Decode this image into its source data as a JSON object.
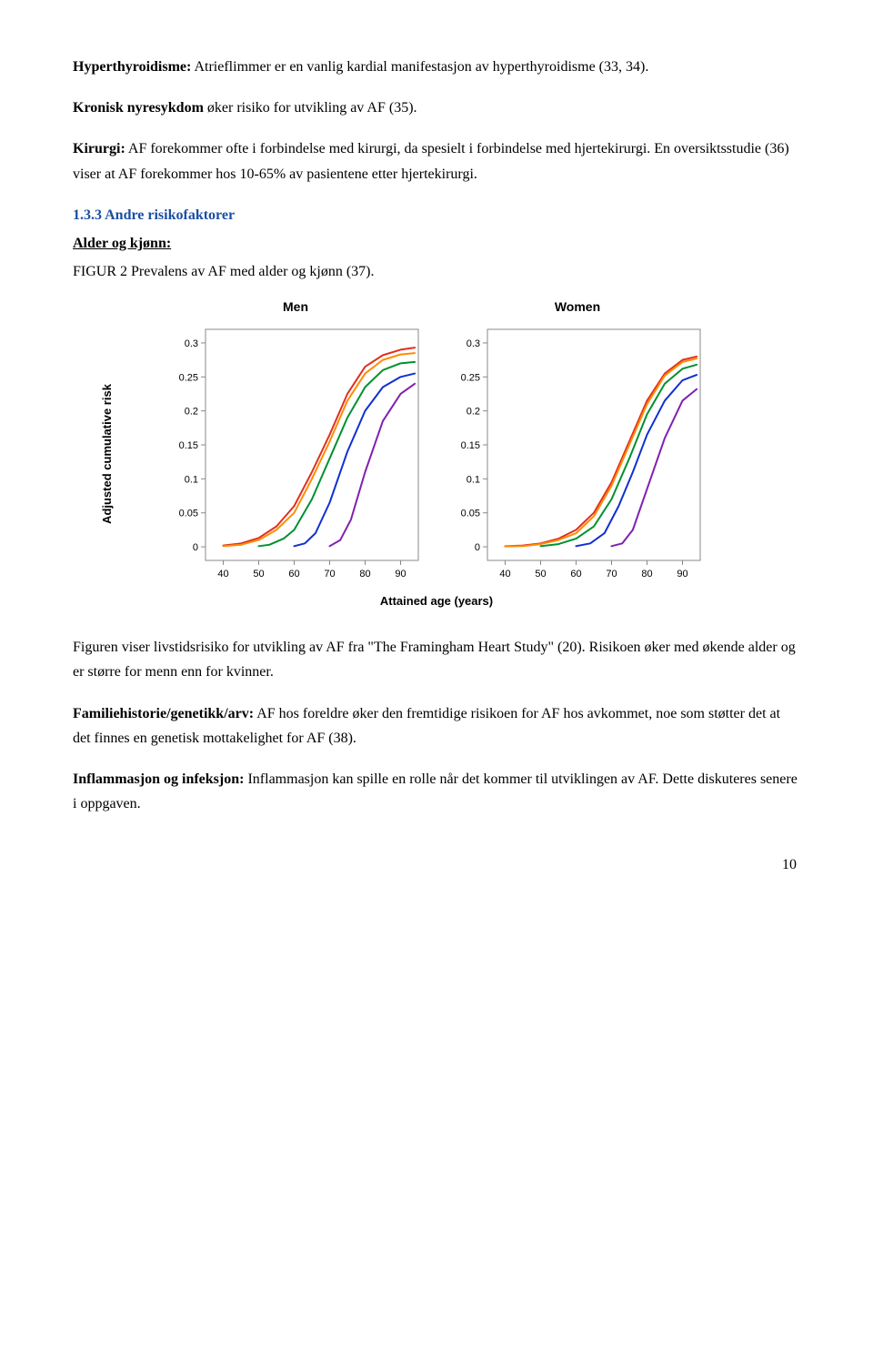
{
  "para1": {
    "label": "Hyperthyroidisme:",
    "text": " Atrieflimmer er en vanlig kardial manifestasjon av hyperthyroidisme (33, 34)."
  },
  "para2": {
    "label": "Kronisk nyresykdom",
    "text": " øker risiko for utvikling av AF (35)."
  },
  "para3": {
    "label": "Kirurgi:",
    "text": " AF forekommer ofte i forbindelse med kirurgi, da spesielt i forbindelse med hjertekirurgi. En oversiktsstudie (36) viser at AF forekommer hos 10-65% av pasientene etter hjertekirurgi."
  },
  "section_heading": "1.3.3 Andre risikofaktorer",
  "subheading": "Alder og kjønn:",
  "figure_caption": "FIGUR 2 Prevalens av AF med alder og kjønn (37).",
  "chart": {
    "y_axis_label": "Adjusted cumulative risk",
    "x_axis_label": "Attained age (years)",
    "panels": [
      {
        "title": "Men"
      },
      {
        "title": "Women"
      }
    ],
    "x_ticks": [
      "40",
      "50",
      "60",
      "70",
      "80",
      "90"
    ],
    "y_ticks": [
      "0",
      "0.05",
      "0.1",
      "0.15",
      "0.2",
      "0.25",
      "0.3"
    ],
    "xlim": [
      35,
      95
    ],
    "ylim": [
      -0.02,
      0.32
    ],
    "line_width": 2,
    "tick_fontsize": 11,
    "axis_color": "#888888",
    "background": "#ffffff",
    "series": {
      "men": [
        {
          "color": "#e03020",
          "points": [
            [
              40,
              0.002
            ],
            [
              45,
              0.005
            ],
            [
              50,
              0.013
            ],
            [
              55,
              0.03
            ],
            [
              60,
              0.06
            ],
            [
              65,
              0.11
            ],
            [
              70,
              0.165
            ],
            [
              75,
              0.225
            ],
            [
              80,
              0.265
            ],
            [
              85,
              0.282
            ],
            [
              90,
              0.29
            ],
            [
              94,
              0.293
            ]
          ]
        },
        {
          "color": "#ff8c00",
          "points": [
            [
              40,
              0.001
            ],
            [
              45,
              0.003
            ],
            [
              50,
              0.01
            ],
            [
              55,
              0.025
            ],
            [
              60,
              0.05
            ],
            [
              65,
              0.1
            ],
            [
              70,
              0.155
            ],
            [
              75,
              0.215
            ],
            [
              80,
              0.255
            ],
            [
              85,
              0.275
            ],
            [
              90,
              0.283
            ],
            [
              94,
              0.285
            ]
          ]
        },
        {
          "color": "#009030",
          "points": [
            [
              50,
              0.001
            ],
            [
              53,
              0.003
            ],
            [
              57,
              0.012
            ],
            [
              60,
              0.025
            ],
            [
              65,
              0.07
            ],
            [
              70,
              0.13
            ],
            [
              75,
              0.19
            ],
            [
              80,
              0.235
            ],
            [
              85,
              0.26
            ],
            [
              90,
              0.27
            ],
            [
              94,
              0.272
            ]
          ]
        },
        {
          "color": "#1030d0",
          "points": [
            [
              60,
              0.001
            ],
            [
              63,
              0.005
            ],
            [
              66,
              0.02
            ],
            [
              70,
              0.065
            ],
            [
              75,
              0.14
            ],
            [
              80,
              0.2
            ],
            [
              85,
              0.235
            ],
            [
              90,
              0.25
            ],
            [
              94,
              0.255
            ]
          ]
        },
        {
          "color": "#8020b0",
          "points": [
            [
              70,
              0.001
            ],
            [
              73,
              0.01
            ],
            [
              76,
              0.04
            ],
            [
              80,
              0.11
            ],
            [
              85,
              0.185
            ],
            [
              90,
              0.225
            ],
            [
              94,
              0.24
            ]
          ]
        }
      ],
      "women": [
        {
          "color": "#e03020",
          "points": [
            [
              40,
              0.001
            ],
            [
              45,
              0.002
            ],
            [
              50,
              0.005
            ],
            [
              55,
              0.012
            ],
            [
              60,
              0.025
            ],
            [
              65,
              0.05
            ],
            [
              70,
              0.095
            ],
            [
              75,
              0.155
            ],
            [
              80,
              0.215
            ],
            [
              85,
              0.255
            ],
            [
              90,
              0.275
            ],
            [
              94,
              0.28
            ]
          ]
        },
        {
          "color": "#ff8c00",
          "points": [
            [
              40,
              0.0005
            ],
            [
              45,
              0.001
            ],
            [
              50,
              0.004
            ],
            [
              55,
              0.01
            ],
            [
              60,
              0.02
            ],
            [
              65,
              0.045
            ],
            [
              70,
              0.09
            ],
            [
              75,
              0.15
            ],
            [
              80,
              0.21
            ],
            [
              85,
              0.252
            ],
            [
              90,
              0.272
            ],
            [
              94,
              0.277
            ]
          ]
        },
        {
          "color": "#009030",
          "points": [
            [
              50,
              0.001
            ],
            [
              55,
              0.004
            ],
            [
              60,
              0.012
            ],
            [
              65,
              0.03
            ],
            [
              70,
              0.07
            ],
            [
              75,
              0.13
            ],
            [
              80,
              0.195
            ],
            [
              85,
              0.24
            ],
            [
              90,
              0.262
            ],
            [
              94,
              0.268
            ]
          ]
        },
        {
          "color": "#1030d0",
          "points": [
            [
              60,
              0.001
            ],
            [
              64,
              0.005
            ],
            [
              68,
              0.02
            ],
            [
              72,
              0.06
            ],
            [
              76,
              0.11
            ],
            [
              80,
              0.165
            ],
            [
              85,
              0.215
            ],
            [
              90,
              0.245
            ],
            [
              94,
              0.253
            ]
          ]
        },
        {
          "color": "#8020b0",
          "points": [
            [
              70,
              0.001
            ],
            [
              73,
              0.005
            ],
            [
              76,
              0.025
            ],
            [
              80,
              0.085
            ],
            [
              85,
              0.16
            ],
            [
              90,
              0.215
            ],
            [
              94,
              0.232
            ]
          ]
        }
      ]
    }
  },
  "para_after_fig": "Figuren viser livstidsrisiko for utvikling av AF fra \"The Framingham Heart Study\" (20). Risikoen øker med økende alder og er større for menn enn for kvinner.",
  "para_familie": {
    "label": "Familiehistorie/genetikk/arv:",
    "text": " AF hos foreldre øker den fremtidige risikoen for AF hos avkommet, noe som støtter det at det finnes en genetisk mottakelighet for AF (38)."
  },
  "para_inflam": {
    "label": "Inflammasjon og infeksjon:",
    "text": " Inflammasjon kan spille en rolle når det kommer til utviklingen av AF. Dette diskuteres senere i oppgaven."
  },
  "page_number": "10"
}
